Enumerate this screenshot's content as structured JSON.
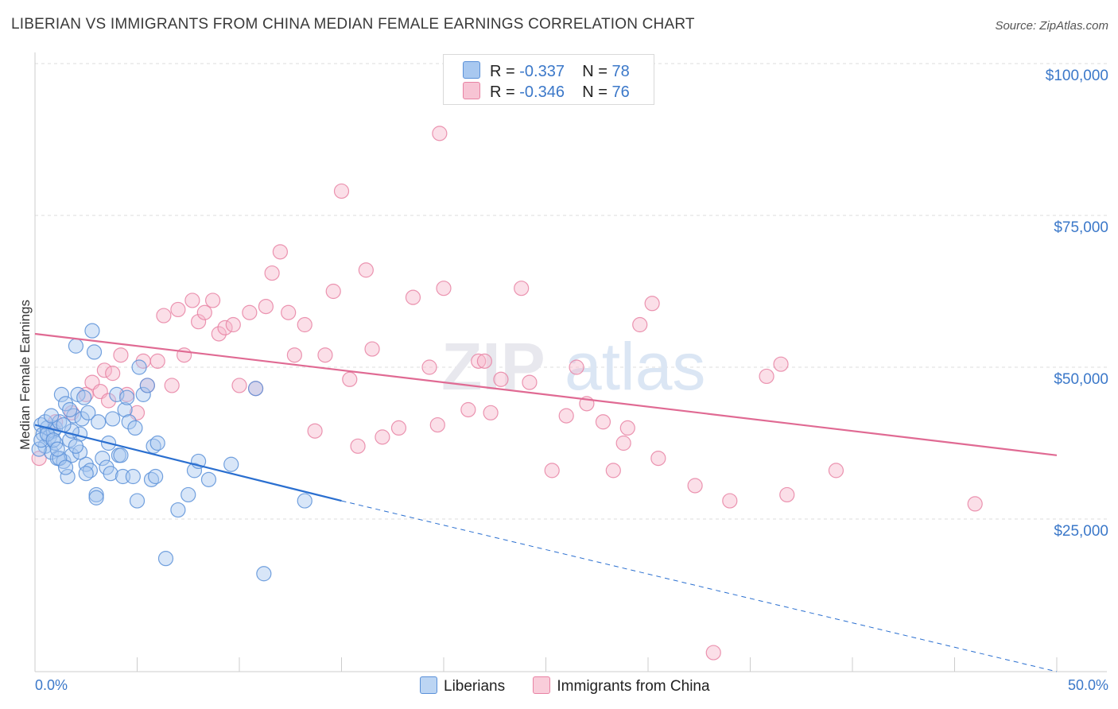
{
  "title": "LIBERIAN VS IMMIGRANTS FROM CHINA MEDIAN FEMALE EARNINGS CORRELATION CHART",
  "source": "Source: ZipAtlas.com",
  "watermark": "ZIPatlas",
  "legend": {
    "series1": {
      "r_label": "R =",
      "r_value": "-0.337",
      "n_label": "N =",
      "n_value": "78"
    },
    "series2": {
      "r_label": "R =",
      "r_value": "-0.346",
      "n_label": "N =",
      "n_value": "76"
    }
  },
  "colors": {
    "blue_fill": "#a8c8f0",
    "blue_stroke": "#5a90d8",
    "blue_line": "#2a6fd0",
    "pink_fill": "#f7b8cb",
    "pink_stroke": "#e882a3",
    "pink_line": "#e06a93",
    "axis_text": "#3b78c9",
    "grid": "#dddddd"
  },
  "chart_data": {
    "type": "scatter",
    "title": "LIBERIAN VS IMMIGRANTS FROM CHINA MEDIAN FEMALE EARNINGS CORRELATION CHART",
    "xlabel": "",
    "ylabel": "Median Female Earnings",
    "xlim": [
      0,
      50
    ],
    "ylim": [
      0,
      105000
    ],
    "x_tick_labels": [
      "0.0%",
      "50.0%"
    ],
    "y_ticks": [
      25000,
      50000,
      75000,
      100000
    ],
    "y_tick_labels": [
      "$25,000",
      "$50,000",
      "$75,000",
      "$100,000"
    ],
    "grid": true,
    "legend_position": "bottom",
    "series": [
      {
        "name": "Liberians",
        "trend": {
          "x0": 0,
          "y0": 40500,
          "x1": 15,
          "y1": 28000,
          "dash_to_x": 50,
          "dash_to_y": -1000
        },
        "points": [
          [
            0.3,
            40500
          ],
          [
            0.4,
            39000
          ],
          [
            0.5,
            37000
          ],
          [
            0.6,
            40000
          ],
          [
            0.7,
            38500
          ],
          [
            0.8,
            36000
          ],
          [
            0.9,
            39500
          ],
          [
            1.0,
            40000
          ],
          [
            1.1,
            35000
          ],
          [
            1.2,
            41000
          ],
          [
            1.3,
            45500
          ],
          [
            1.4,
            34500
          ],
          [
            1.5,
            44000
          ],
          [
            1.6,
            32000
          ],
          [
            1.7,
            38000
          ],
          [
            1.8,
            35500
          ],
          [
            1.9,
            42000
          ],
          [
            2.0,
            53500
          ],
          [
            2.1,
            45500
          ],
          [
            2.2,
            39000
          ],
          [
            2.3,
            41500
          ],
          [
            2.4,
            45000
          ],
          [
            2.5,
            34000
          ],
          [
            2.6,
            42500
          ],
          [
            2.7,
            33000
          ],
          [
            2.8,
            56000
          ],
          [
            2.9,
            52500
          ],
          [
            3.0,
            29000
          ],
          [
            3.1,
            41000
          ],
          [
            3.3,
            35000
          ],
          [
            3.5,
            33500
          ],
          [
            3.6,
            37500
          ],
          [
            3.7,
            32500
          ],
          [
            3.8,
            41500
          ],
          [
            4.0,
            45500
          ],
          [
            4.1,
            35500
          ],
          [
            4.2,
            35500
          ],
          [
            4.3,
            32000
          ],
          [
            4.4,
            43000
          ],
          [
            4.5,
            45000
          ],
          [
            4.6,
            41000
          ],
          [
            4.8,
            32000
          ],
          [
            4.9,
            40000
          ],
          [
            5.0,
            28000
          ],
          [
            5.1,
            50000
          ],
          [
            5.3,
            45500
          ],
          [
            5.5,
            47000
          ],
          [
            5.7,
            31500
          ],
          [
            5.8,
            37000
          ],
          [
            5.9,
            32000
          ],
          [
            6.0,
            37500
          ],
          [
            6.4,
            18500
          ],
          [
            7.0,
            26500
          ],
          [
            7.5,
            29000
          ],
          [
            7.8,
            33000
          ],
          [
            8.0,
            34500
          ],
          [
            8.5,
            31500
          ],
          [
            9.6,
            34000
          ],
          [
            10.8,
            46500
          ],
          [
            11.2,
            16000
          ],
          [
            13.2,
            28000
          ],
          [
            0.2,
            36500
          ],
          [
            0.5,
            41000
          ],
          [
            0.8,
            42000
          ],
          [
            1.0,
            37500
          ],
          [
            1.2,
            35000
          ],
          [
            1.5,
            33500
          ],
          [
            1.8,
            39500
          ],
          [
            2.2,
            36000
          ],
          [
            2.5,
            32500
          ],
          [
            3.0,
            28500
          ],
          [
            0.3,
            38000
          ],
          [
            0.6,
            39000
          ],
          [
            0.9,
            38000
          ],
          [
            1.1,
            36500
          ],
          [
            1.4,
            40500
          ],
          [
            1.7,
            43000
          ],
          [
            2.0,
            37000
          ]
        ]
      },
      {
        "name": "Immigrants from China",
        "trend": {
          "x0": 0,
          "y0": 55500,
          "x1": 50,
          "y1": 35500
        },
        "points": [
          [
            0.2,
            35000
          ],
          [
            1.0,
            41000
          ],
          [
            1.8,
            42500
          ],
          [
            2.5,
            45500
          ],
          [
            2.8,
            47500
          ],
          [
            3.2,
            46000
          ],
          [
            3.4,
            49500
          ],
          [
            3.6,
            44500
          ],
          [
            3.8,
            49000
          ],
          [
            4.2,
            52000
          ],
          [
            4.5,
            45500
          ],
          [
            5.0,
            42500
          ],
          [
            5.3,
            51000
          ],
          [
            5.5,
            47000
          ],
          [
            6.0,
            51000
          ],
          [
            6.3,
            58500
          ],
          [
            6.7,
            47000
          ],
          [
            7.0,
            59500
          ],
          [
            7.3,
            52000
          ],
          [
            7.7,
            61000
          ],
          [
            8.0,
            57500
          ],
          [
            8.3,
            59000
          ],
          [
            8.7,
            61000
          ],
          [
            9.0,
            55500
          ],
          [
            9.3,
            56500
          ],
          [
            9.7,
            57000
          ],
          [
            10.0,
            47000
          ],
          [
            10.5,
            59000
          ],
          [
            10.8,
            46500
          ],
          [
            11.3,
            60000
          ],
          [
            11.6,
            65500
          ],
          [
            12.0,
            69000
          ],
          [
            12.4,
            59000
          ],
          [
            12.7,
            52000
          ],
          [
            13.2,
            57000
          ],
          [
            13.7,
            39500
          ],
          [
            14.2,
            52000
          ],
          [
            14.6,
            62500
          ],
          [
            15.0,
            79000
          ],
          [
            15.4,
            48000
          ],
          [
            15.8,
            37000
          ],
          [
            16.2,
            66000
          ],
          [
            16.5,
            53000
          ],
          [
            17.0,
            38500
          ],
          [
            17.8,
            40000
          ],
          [
            18.5,
            61500
          ],
          [
            19.3,
            50000
          ],
          [
            19.7,
            40500
          ],
          [
            19.8,
            88500
          ],
          [
            20.0,
            63000
          ],
          [
            21.2,
            43000
          ],
          [
            21.7,
            51000
          ],
          [
            22.0,
            51000
          ],
          [
            22.3,
            42500
          ],
          [
            22.8,
            48000
          ],
          [
            23.8,
            63000
          ],
          [
            24.2,
            47500
          ],
          [
            25.3,
            33000
          ],
          [
            26.0,
            42000
          ],
          [
            26.5,
            50000
          ],
          [
            27.0,
            44000
          ],
          [
            27.8,
            41000
          ],
          [
            28.3,
            33000
          ],
          [
            28.8,
            37500
          ],
          [
            29.0,
            40000
          ],
          [
            29.6,
            57000
          ],
          [
            30.2,
            60500
          ],
          [
            30.5,
            35000
          ],
          [
            32.3,
            30500
          ],
          [
            33.2,
            3000
          ],
          [
            34.0,
            28000
          ],
          [
            35.8,
            48500
          ],
          [
            36.5,
            50500
          ],
          [
            36.8,
            29000
          ],
          [
            39.2,
            33000
          ],
          [
            46.0,
            27500
          ]
        ]
      }
    ]
  },
  "bottom_legend": {
    "item1": "Liberians",
    "item2": "Immigrants from China"
  }
}
